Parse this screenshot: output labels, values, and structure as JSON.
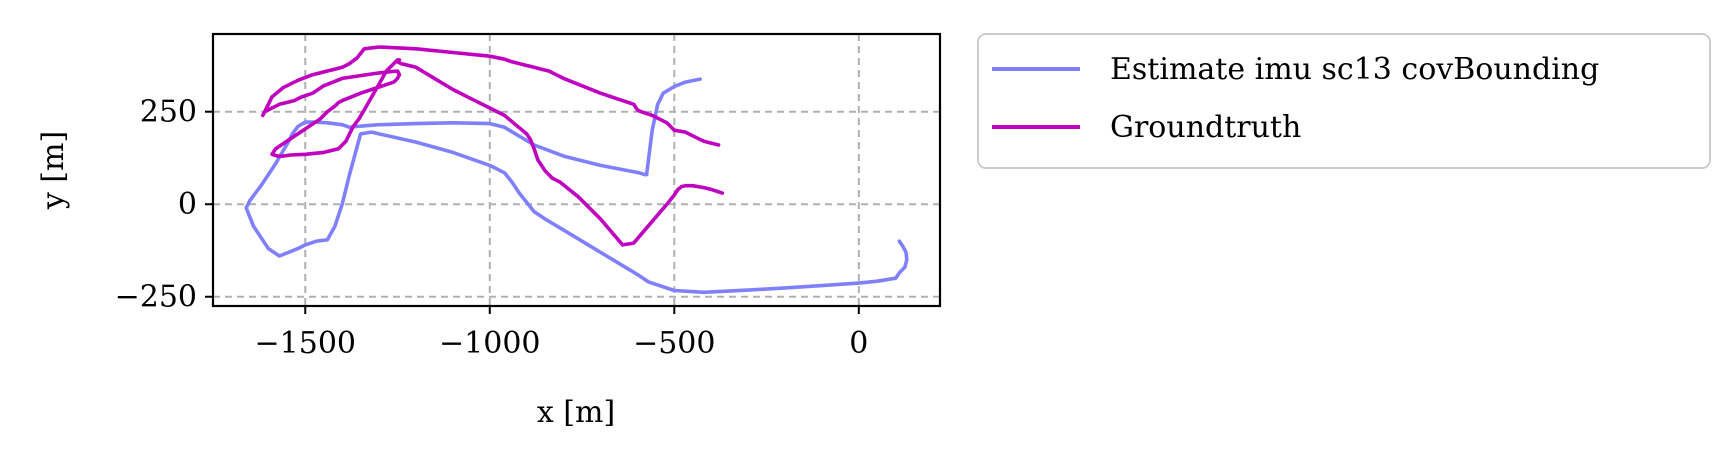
{
  "chart_data": {
    "type": "line",
    "title": "",
    "xlabel": "x [m]",
    "ylabel": "y [m]",
    "xlim": [
      -1750,
      220
    ],
    "ylim": [
      -275,
      460
    ],
    "xticks": [
      -1500,
      -1000,
      -500,
      0
    ],
    "xtick_labels": [
      "−1500",
      "−1000",
      "−500",
      "0"
    ],
    "yticks": [
      -250,
      0,
      250
    ],
    "ytick_labels": [
      "−250",
      "0",
      "250"
    ],
    "grid": true,
    "grid_style": "dashed",
    "legend_position": "outside-top-right",
    "series": [
      {
        "name": "Estimate imu sc13 covBounding",
        "color": "#8080ff",
        "x": [
          -430,
          -470,
          -500,
          -530,
          -545,
          -560,
          -575,
          -580,
          -595,
          -700,
          -800,
          -880,
          -930,
          -960,
          -1000,
          -1100,
          -1200,
          -1300,
          -1340,
          -1360,
          -1380,
          -1400,
          -1440,
          -1480,
          -1500,
          -1520,
          -1535,
          -1545,
          -1580,
          -1620,
          -1650,
          -1660,
          -1640,
          -1600,
          -1570,
          -1520,
          -1500,
          -1470,
          -1455,
          -1440,
          -1420,
          -1400,
          -1380,
          -1350,
          -1320,
          -1300,
          -1200,
          -1100,
          -1000,
          -960,
          -940,
          -920,
          -880,
          -850,
          -800,
          -700,
          -600,
          -570,
          -500,
          -420,
          -300,
          -200,
          -100,
          0,
          50,
          100,
          110,
          125,
          130,
          128,
          120,
          110
        ],
        "y": [
          338,
          330,
          318,
          300,
          270,
          200,
          80,
          80,
          85,
          105,
          130,
          160,
          190,
          208,
          218,
          220,
          218,
          215,
          212,
          210,
          208,
          215,
          220,
          222,
          222,
          210,
          190,
          170,
          110,
          50,
          10,
          -10,
          -60,
          -120,
          -140,
          -120,
          -110,
          -100,
          -98,
          -96,
          -60,
          0,
          80,
          190,
          195,
          190,
          168,
          140,
          105,
          85,
          60,
          30,
          -20,
          -40,
          -70,
          -130,
          -190,
          -210,
          -233,
          -238,
          -232,
          -226,
          -220,
          -213,
          -208,
          -200,
          -185,
          -170,
          -150,
          -130,
          -115,
          -100
        ]
      },
      {
        "name": "Groundtruth",
        "color": "#bf00bf",
        "x": [
          -370,
          -400,
          -420,
          -450,
          -470,
          -480,
          -490,
          -500,
          -520,
          -550,
          -580,
          -610,
          -640,
          -700,
          -760,
          -810,
          -830,
          -850,
          -870,
          -880,
          -890,
          -900,
          -930,
          -960,
          -1000,
          -1050,
          -1100,
          -1150,
          -1200,
          -1240,
          -1250,
          -1245,
          -1250,
          -1260,
          -1280,
          -1300,
          -1320,
          -1340,
          -1355,
          -1370,
          -1380,
          -1390,
          -1410,
          -1450,
          -1500,
          -1540,
          -1560,
          -1575,
          -1590,
          -1580,
          -1550,
          -1520,
          -1490,
          -1460,
          -1440,
          -1420,
          -1410,
          -1400,
          -1375,
          -1350,
          -1320,
          -1290,
          -1260,
          -1250,
          -1245,
          -1250,
          -1300,
          -1400,
          -1450,
          -1480,
          -1510,
          -1530,
          -1550,
          -1570,
          -1580,
          -1590,
          -1600,
          -1610,
          -1615,
          -1600,
          -1590,
          -1560,
          -1520,
          -1480,
          -1440,
          -1420,
          -1400,
          -1380,
          -1360,
          -1340,
          -1300,
          -1200,
          -1100,
          -1000,
          -960,
          -940,
          -920,
          -900,
          -880,
          -860,
          -840,
          -820,
          -800,
          -700,
          -610,
          -600,
          -590,
          -560,
          -520,
          -500,
          -470,
          -450,
          -420,
          -380
        ],
        "y": [
          30,
          40,
          45,
          50,
          50,
          48,
          40,
          25,
          0,
          -35,
          -70,
          -105,
          -110,
          -40,
          20,
          60,
          70,
          90,
          120,
          150,
          175,
          190,
          215,
          240,
          260,
          285,
          310,
          340,
          370,
          380,
          385,
          390,
          390,
          380,
          360,
          325,
          290,
          255,
          230,
          210,
          190,
          170,
          150,
          140,
          135,
          133,
          130,
          130,
          135,
          150,
          170,
          190,
          210,
          230,
          250,
          265,
          275,
          280,
          290,
          300,
          310,
          320,
          330,
          340,
          350,
          360,
          355,
          340,
          320,
          300,
          290,
          280,
          275,
          270,
          265,
          260,
          255,
          250,
          240,
          270,
          290,
          315,
          335,
          350,
          360,
          365,
          370,
          380,
          395,
          420,
          425,
          420,
          410,
          400,
          392,
          385,
          380,
          375,
          370,
          365,
          360,
          350,
          340,
          300,
          270,
          255,
          250,
          240,
          220,
          200,
          195,
          185,
          170,
          160
        ]
      }
    ]
  }
}
